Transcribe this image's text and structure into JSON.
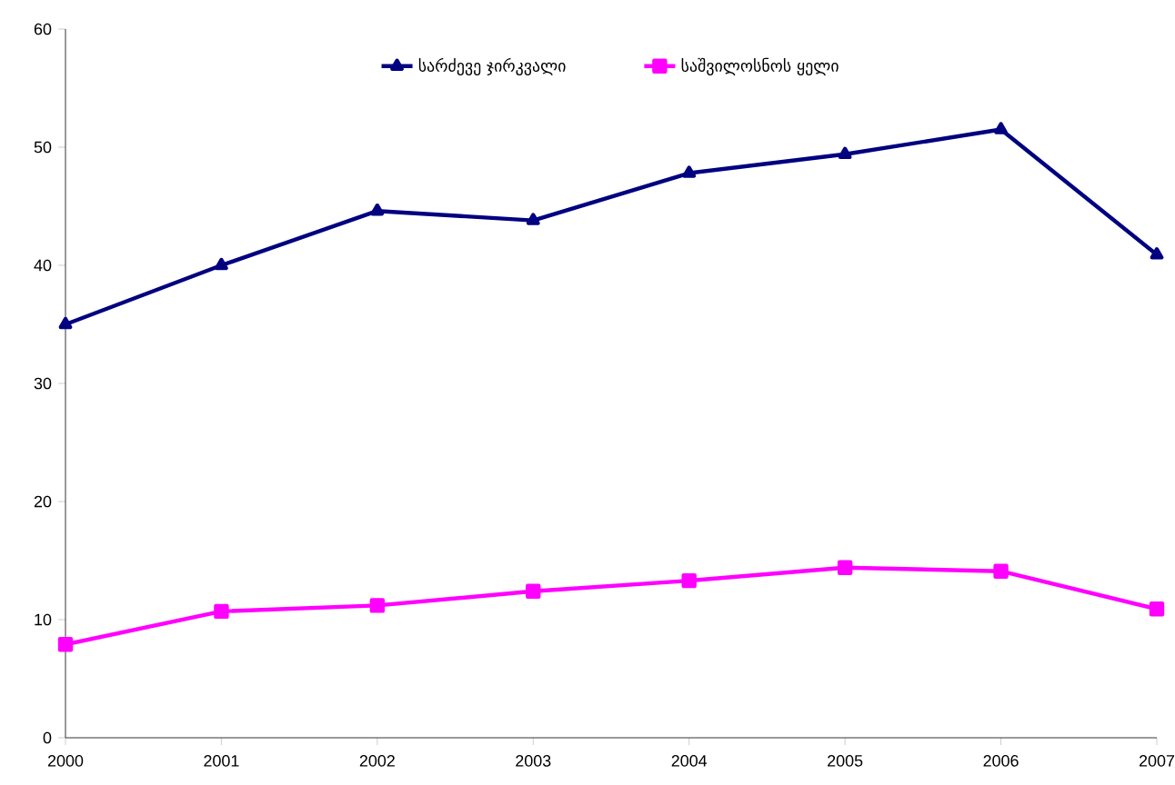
{
  "chart_data": {
    "type": "line",
    "categories": [
      "2000",
      "2001",
      "2002",
      "2003",
      "2004",
      "2005",
      "2006",
      "2007"
    ],
    "series": [
      {
        "name": "სარძევე ჯირკვალი",
        "color": "#000080",
        "marker": "triangle",
        "values": [
          35,
          40,
          44.6,
          43.8,
          47.8,
          49.4,
          51.5,
          40.9
        ]
      },
      {
        "name": "საშვილოსნოს ყელი",
        "color": "#ff00ff",
        "marker": "square",
        "values": [
          7.9,
          10.7,
          11.2,
          12.4,
          13.3,
          14.4,
          14.1,
          10.9
        ]
      }
    ],
    "ylim": [
      0,
      60
    ],
    "yticks": [
      0,
      10,
      20,
      30,
      40,
      50,
      60
    ],
    "grid": false,
    "legend": "top",
    "line_style": "solid"
  }
}
